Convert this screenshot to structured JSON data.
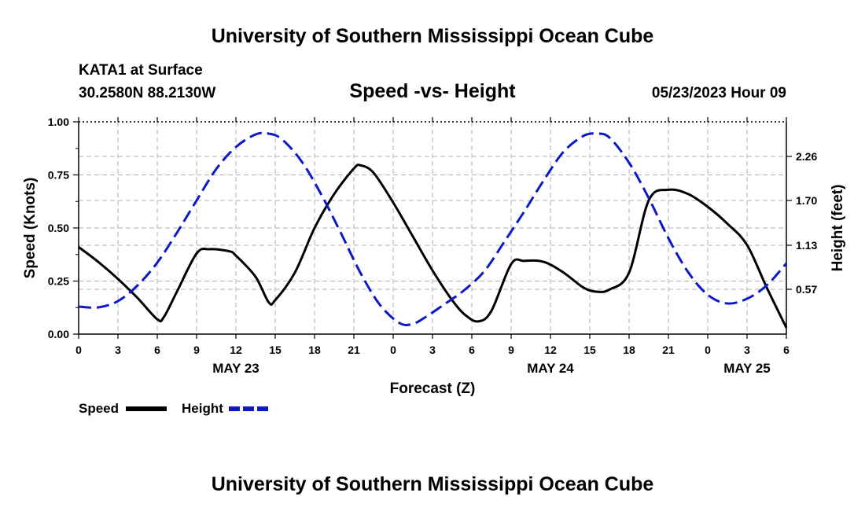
{
  "header": {
    "title": "University of Southern Mississippi Ocean Cube",
    "station": "KATA1 at Surface",
    "coords": "30.2580N  88.2130W",
    "date": "05/23/2023 Hour 09",
    "footer_title": "University of Southern Mississippi Ocean Cube"
  },
  "chart_data": {
    "type": "line",
    "title": "Speed -vs- Height",
    "xlabel": "Forecast (Z)",
    "ylabel_left": "Speed (Knots)",
    "ylabel_right": "Height (feet)",
    "x_unit": "hours from 05/23 00Z",
    "xlim": [
      0,
      54
    ],
    "x_ticks": [
      0,
      3,
      6,
      9,
      12,
      15,
      18,
      21,
      24,
      27,
      30,
      33,
      36,
      39,
      42,
      45,
      48,
      51,
      54
    ],
    "x_tick_labels": [
      "0",
      "3",
      "6",
      "9",
      "12",
      "15",
      "18",
      "21",
      "0",
      "3",
      "6",
      "9",
      "12",
      "15",
      "18",
      "21",
      "0",
      "3",
      "6"
    ],
    "day_labels": [
      {
        "x": 12,
        "label": "MAY 23"
      },
      {
        "x": 36,
        "label": "MAY 24"
      },
      {
        "x": 51,
        "label": "MAY 25"
      }
    ],
    "ylim_left": [
      0,
      1
    ],
    "y_ticks_left": [
      0,
      0.25,
      0.5,
      0.75,
      1.0
    ],
    "y_tick_labels_left": [
      "0.00",
      "0.25",
      "0.50",
      "0.75",
      "1.00"
    ],
    "ylim_right": [
      0,
      2.7
    ],
    "y_ticks_right": [
      0.57,
      1.13,
      1.7,
      2.26
    ],
    "y_tick_labels_right": [
      "0.57",
      "1.13",
      "1.70",
      "2.26"
    ],
    "grid": true,
    "legend_position": "bottom-left",
    "series": [
      {
        "name": "Speed",
        "axis": "left",
        "color": "#000000",
        "dash": false,
        "x": [
          0,
          1.5,
          3,
          4.5,
          6,
          6.5,
          7.5,
          9,
          10,
          11.5,
          12,
          13.5,
          14.5,
          15,
          16.5,
          18,
          19.5,
          21,
          21.5,
          22.5,
          24,
          25.5,
          27,
          28.5,
          29.5,
          30.5,
          31.5,
          33,
          34,
          35.5,
          37,
          38.5,
          39.5,
          40.5,
          42,
          43.5,
          45,
          46.5,
          48,
          49.5,
          51,
          52.5,
          54
        ],
        "y": [
          0.41,
          0.34,
          0.26,
          0.17,
          0.07,
          0.08,
          0.2,
          0.38,
          0.4,
          0.39,
          0.37,
          0.27,
          0.15,
          0.16,
          0.29,
          0.5,
          0.66,
          0.78,
          0.795,
          0.76,
          0.62,
          0.46,
          0.3,
          0.16,
          0.09,
          0.06,
          0.11,
          0.33,
          0.345,
          0.34,
          0.29,
          0.22,
          0.2,
          0.21,
          0.29,
          0.63,
          0.68,
          0.66,
          0.6,
          0.52,
          0.42,
          0.22,
          0.03
        ]
      },
      {
        "name": "Height",
        "axis": "right",
        "color": "#0b19c8",
        "dash": true,
        "x": [
          0,
          1.5,
          3,
          4.5,
          6,
          7.5,
          9,
          10.5,
          12,
          13.5,
          14.5,
          15.5,
          17,
          18.5,
          20,
          21.5,
          23,
          24.5,
          25.5,
          26.5,
          28,
          29.5,
          31,
          32.5,
          34,
          35.5,
          37,
          38.5,
          39.5,
          40.5,
          42,
          43.5,
          45,
          46.5,
          48,
          49.5,
          51,
          52.5,
          54
        ],
        "y": [
          0.35,
          0.34,
          0.42,
          0.62,
          0.91,
          1.29,
          1.7,
          2.1,
          2.38,
          2.54,
          2.55,
          2.48,
          2.2,
          1.78,
          1.29,
          0.78,
          0.37,
          0.14,
          0.13,
          0.22,
          0.39,
          0.57,
          0.81,
          1.18,
          1.56,
          1.96,
          2.32,
          2.52,
          2.55,
          2.5,
          2.18,
          1.73,
          1.22,
          0.79,
          0.5,
          0.39,
          0.45,
          0.62,
          0.9
        ]
      }
    ]
  }
}
